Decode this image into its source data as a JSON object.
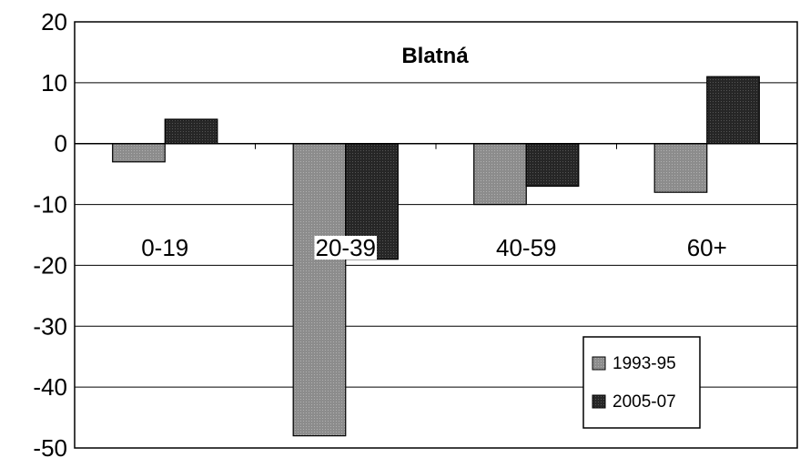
{
  "chart_data": {
    "type": "bar",
    "title": "Blatná",
    "categories": [
      "0-19",
      "20-39",
      "40-59",
      "60+"
    ],
    "series": [
      {
        "name": "1993-95",
        "values": [
          -3,
          -48,
          -10,
          -8
        ],
        "color": "#8c8c8c"
      },
      {
        "name": "2005-07",
        "values": [
          4,
          -19,
          -7,
          11
        ],
        "color": "#2b2b2b"
      }
    ],
    "ylim": [
      -50,
      20
    ],
    "yticks": [
      "20",
      "10",
      "0",
      "-10",
      "-20",
      "-30",
      "-40",
      "-50"
    ],
    "xlabel": "",
    "ylabel": "",
    "grid": true,
    "legend_position": "bottom-right"
  }
}
